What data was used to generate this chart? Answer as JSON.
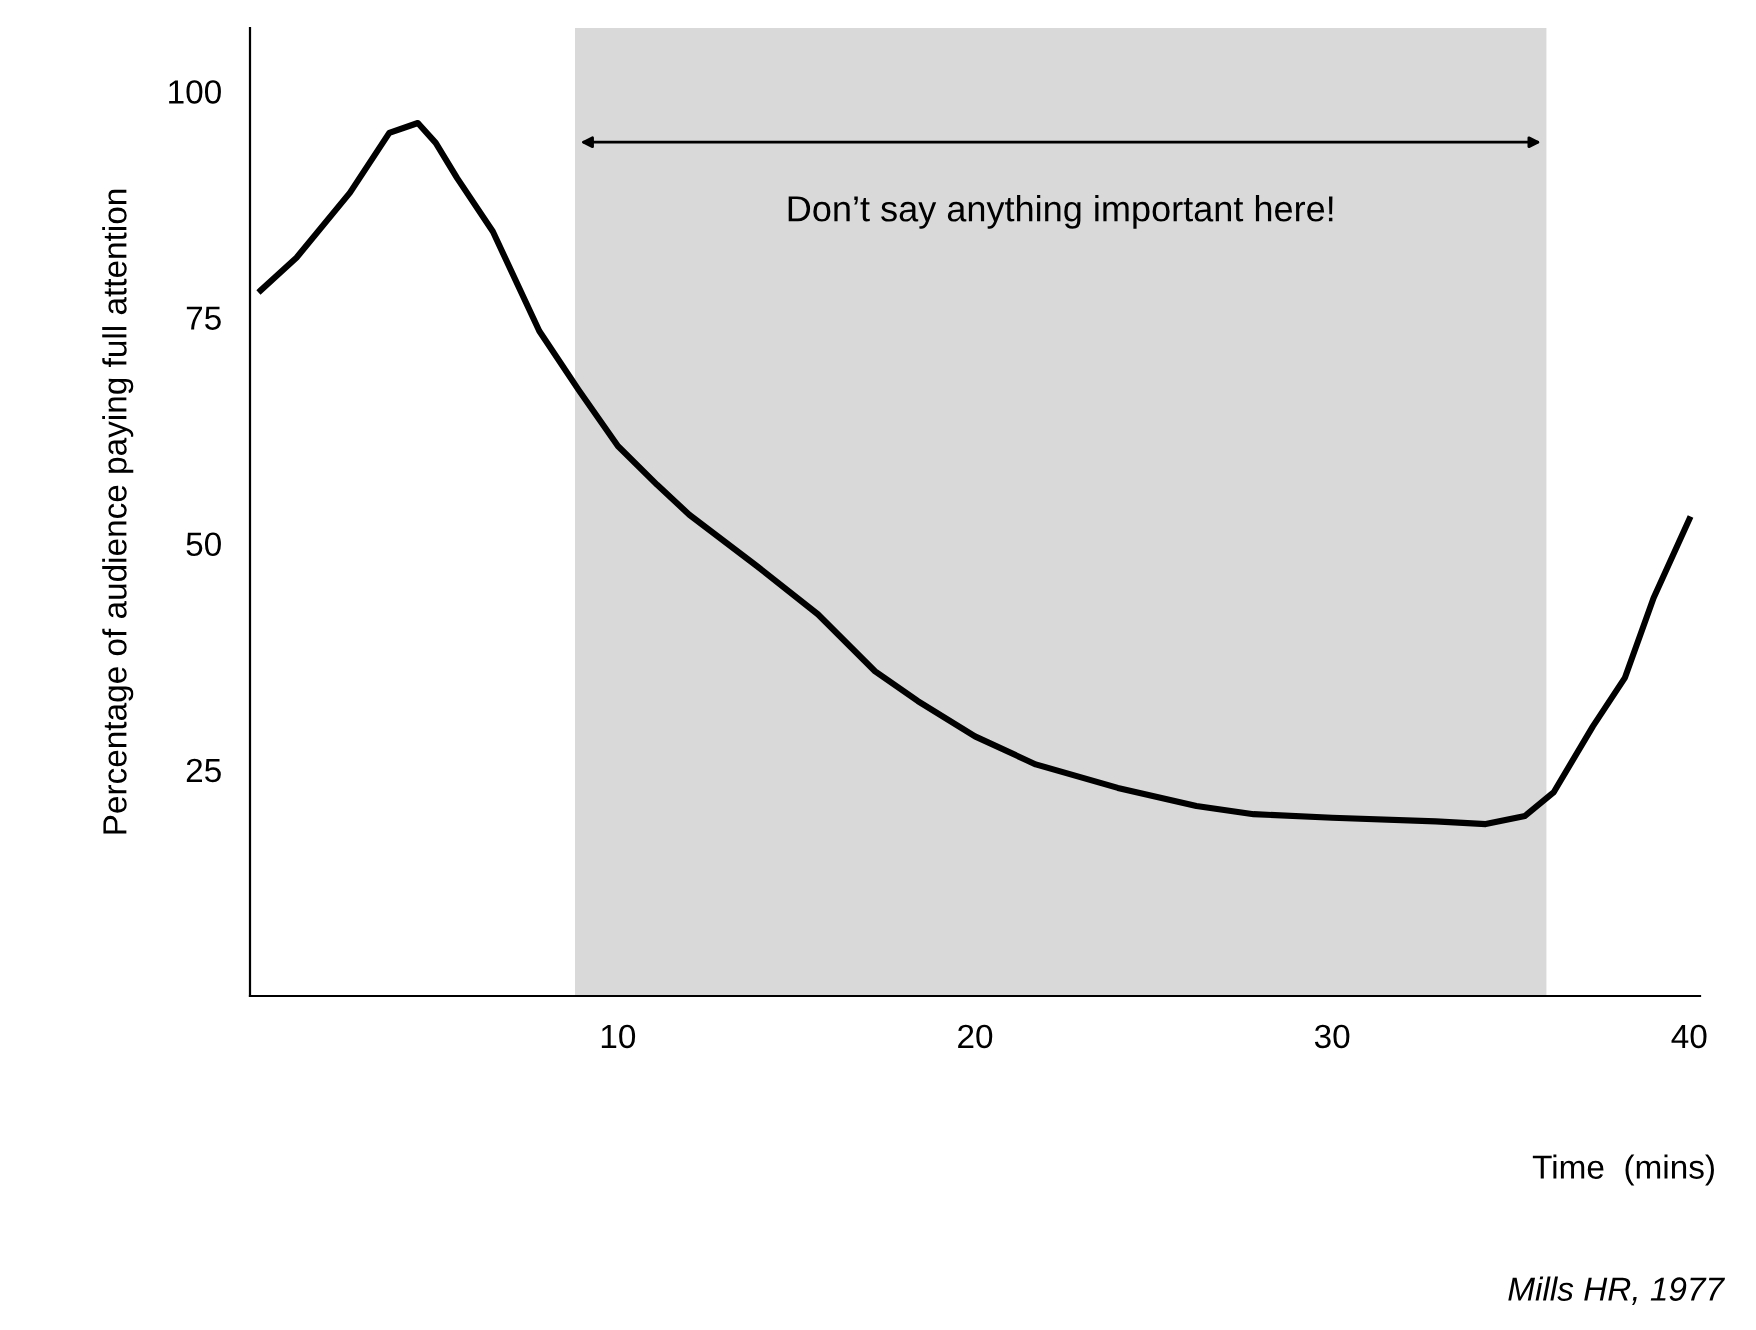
{
  "chart_data": {
    "type": "line",
    "xlabel": "Time  (mins)",
    "ylabel": "Percentage of audience paying full attention",
    "x": [
      0,
      1.0,
      2.5,
      3.6,
      4.4,
      4.9,
      5.5,
      6.5,
      7.8,
      8.9,
      10,
      11.1,
      12,
      13.9,
      15.6,
      17.2,
      18.4,
      20,
      21.7,
      24,
      26.2,
      27.8,
      30,
      32.9,
      34.3,
      35.4,
      36.2,
      37.3,
      38.2,
      39,
      40
    ],
    "values": [
      78,
      81.6,
      88.8,
      95.4,
      96.5,
      94.3,
      90.4,
      84.5,
      73.5,
      67,
      60.8,
      56.5,
      53.2,
      47.5,
      42.2,
      35.9,
      32.6,
      28.7,
      25.6,
      23,
      21,
      20.1,
      19.7,
      19.3,
      19,
      19.9,
      22.5,
      29.8,
      35.2,
      44,
      52.7
    ],
    "color": "#000000",
    "xlim": [
      -0.3,
      40.3
    ],
    "ylim": [
      0,
      107
    ],
    "xticks": [
      10,
      20,
      30,
      40
    ],
    "yticks": [
      25,
      50,
      75,
      100
    ],
    "grid": false,
    "marker": "none",
    "line_style": "solid",
    "bands": [
      {
        "axis": "x",
        "from": 8.8,
        "to": 36.0,
        "label": "Don’t say anything important here!",
        "color": "#d9d9d9"
      }
    ],
    "annotations": [
      "Mills HR, 1977"
    ]
  }
}
